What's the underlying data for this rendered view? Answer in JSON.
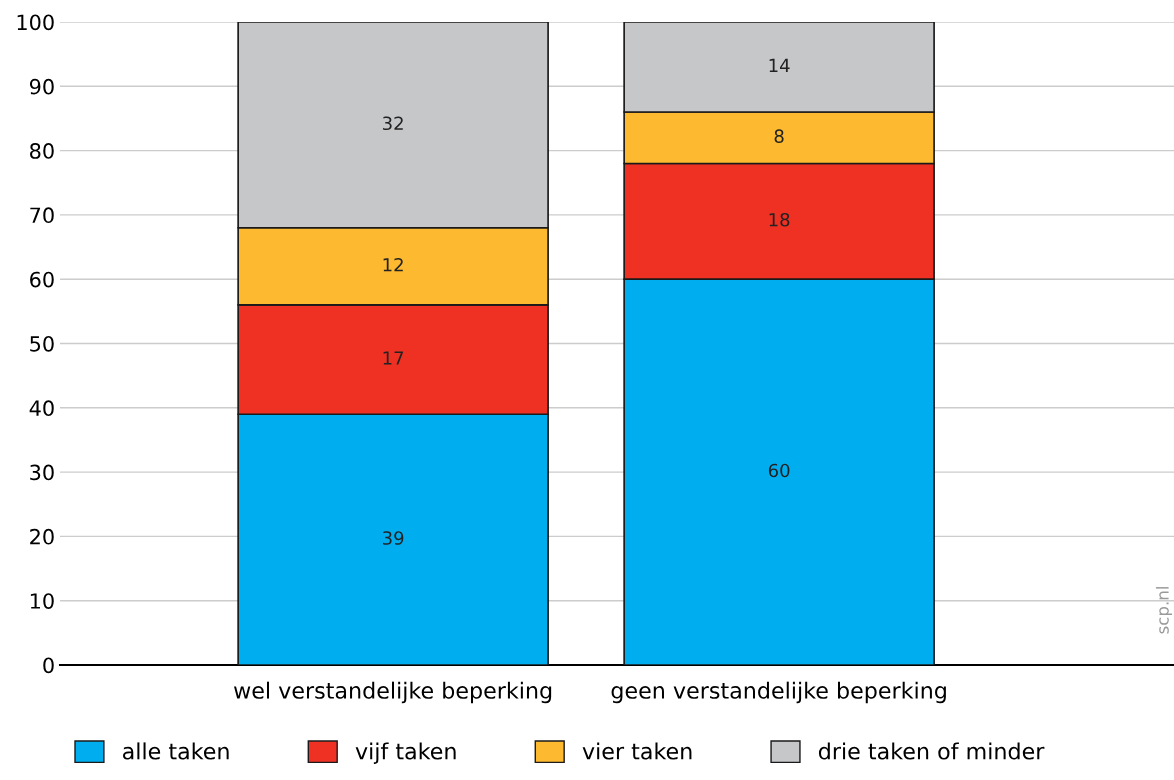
{
  "chart_data": {
    "type": "bar",
    "stacked": true,
    "categories": [
      "wel verstandelijke beperking",
      "geen verstandelijke beperking"
    ],
    "series": [
      {
        "name": "alle taken",
        "color": "#00aeef",
        "values": [
          39,
          60
        ]
      },
      {
        "name": "vijf taken",
        "color": "#ef3124",
        "values": [
          17,
          18
        ]
      },
      {
        "name": "vier taken",
        "color": "#fdb92f",
        "values": [
          12,
          8
        ]
      },
      {
        "name": "drie taken of minder",
        "color": "#c6c7c9",
        "values": [
          32,
          14
        ]
      }
    ],
    "ylim": [
      0,
      100
    ],
    "yticks": [
      0,
      10,
      20,
      30,
      40,
      50,
      60,
      70,
      80,
      90,
      100
    ],
    "grid": "y",
    "legend": "bottom",
    "data_labels": true,
    "annotations": [
      "scp.nl"
    ]
  }
}
